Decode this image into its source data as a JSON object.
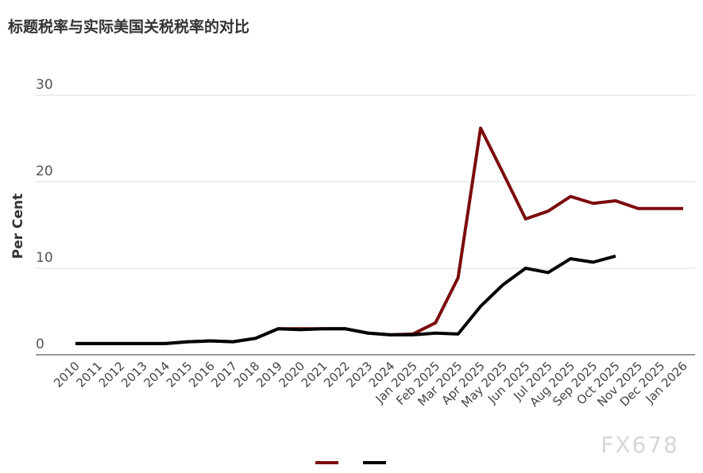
{
  "chart_data": {
    "type": "line",
    "title": "标题税率与实际美国关税税率的对比",
    "y_label": "Per Cent",
    "watermark": "FX678",
    "categories": [
      "2010",
      "2011",
      "2012",
      "2013",
      "2014",
      "2015",
      "2016",
      "2017",
      "2018",
      "2019",
      "2020",
      "2021",
      "2022",
      "2023",
      "2024",
      "Jan 2025",
      "Feb 2025",
      "Mar 2025",
      "Apr 2025",
      "May 2025",
      "Jun 2025",
      "Jul 2025",
      "Aug 2025",
      "Sep 2025",
      "Oct 2025",
      "Nov 2025",
      "Dec 2025",
      "Jan 2026"
    ],
    "series": [
      {
        "color": "#7b0c0c",
        "values": [
          1.3,
          1.3,
          1.3,
          1.3,
          1.3,
          1.5,
          1.6,
          1.5,
          1.9,
          3.0,
          3.0,
          3.0,
          3.0,
          2.5,
          2.3,
          2.4,
          3.7,
          8.9,
          26.2,
          21.0,
          15.7,
          16.6,
          18.3,
          17.5,
          17.8,
          16.9,
          16.9,
          16.9
        ]
      },
      {
        "color": "#000000",
        "values": [
          1.3,
          1.3,
          1.3,
          1.3,
          1.3,
          1.5,
          1.6,
          1.5,
          1.9,
          3.0,
          2.9,
          3.0,
          3.0,
          2.5,
          2.3,
          2.3,
          2.5,
          2.4,
          5.6,
          8.1,
          10.0,
          9.5,
          11.1,
          10.7,
          11.4,
          null,
          null,
          null
        ]
      }
    ],
    "ylim": [
      0,
      30.5
    ],
    "yticks": [
      0,
      10,
      20,
      30
    ],
    "grid": true
  }
}
